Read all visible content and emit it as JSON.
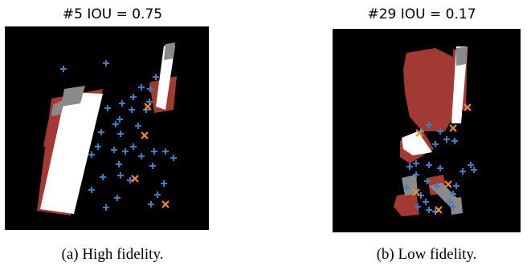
{
  "figures": [
    {
      "title": "#5 IOU = 0.75",
      "caption": "(a) High fidelity.",
      "colors": {
        "background": "#000000",
        "region_red": "#a23a33",
        "region_white": "#ffffff",
        "region_gray": "#8a8a8a",
        "marker_blue": "#3b7fc4",
        "marker_orange": "#f08a2c"
      },
      "marker_counts": {
        "blue_plus": 36,
        "orange_x": 4
      }
    },
    {
      "title": "#29 IOU = 0.17",
      "caption": "(b) Low fidelity.",
      "colors": {
        "background": "#000000",
        "region_red": "#a23a33",
        "region_white": "#ffffff",
        "region_gray": "#8a8a8a",
        "marker_blue": "#3b7fc4",
        "marker_orange": "#f08a2c"
      },
      "marker_counts": {
        "blue_plus": 26,
        "orange_x": 6
      }
    }
  ]
}
